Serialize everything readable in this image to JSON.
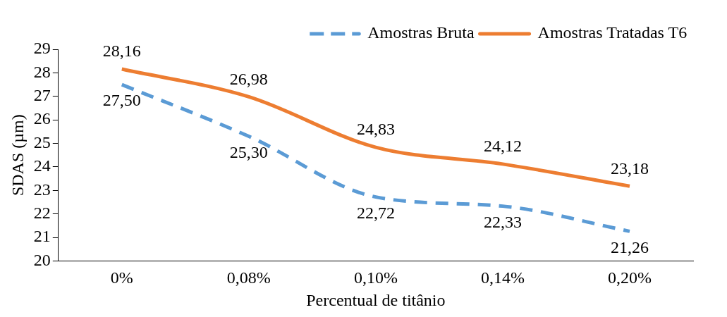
{
  "chart_data": {
    "type": "line",
    "xlabel": "Percentual de titânio",
    "ylabel": "SDAS (µm)",
    "categories": [
      "0%",
      "0,08%",
      "0,10%",
      "0,14%",
      "0,20%"
    ],
    "series": [
      {
        "name": "Amostras Bruta",
        "color": "#5b9bd5",
        "line_style": "dashed",
        "values": [
          27.5,
          25.3,
          22.72,
          22.33,
          21.26
        ],
        "value_labels": [
          "27,50",
          "25,30",
          "22,72",
          "22,33",
          "21,26"
        ]
      },
      {
        "name": "Amostras Tratadas T6",
        "color": "#ed7d31",
        "line_style": "solid",
        "values": [
          28.16,
          26.98,
          24.83,
          24.12,
          23.18
        ],
        "value_labels": [
          "28,16",
          "26,98",
          "24,83",
          "24,12",
          "23,18"
        ]
      }
    ],
    "ylim": [
      20,
      29
    ],
    "yticks": [
      20,
      21,
      22,
      23,
      24,
      25,
      26,
      27,
      28,
      29
    ],
    "grid": false,
    "legend": "top right",
    "marker": "none"
  }
}
